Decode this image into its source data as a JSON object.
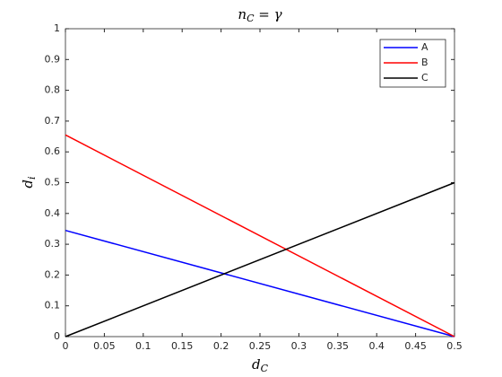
{
  "chart_data": {
    "type": "line",
    "title": {
      "base": "n",
      "sub": "C",
      "rest": " = γ"
    },
    "xlabel": {
      "base": "d",
      "sub": "C"
    },
    "ylabel": {
      "base": "d",
      "sub": "i"
    },
    "x": [
      0,
      0.5
    ],
    "series": [
      {
        "name": "A",
        "color": "#0000ff",
        "values": [
          0.345,
          0
        ]
      },
      {
        "name": "B",
        "color": "#ff0000",
        "values": [
          0.655,
          0
        ]
      },
      {
        "name": "C",
        "color": "#000000",
        "values": [
          0,
          0.5
        ]
      }
    ],
    "xlim": [
      0,
      0.5
    ],
    "xticks": [
      0,
      0.05,
      0.1,
      0.15,
      0.2,
      0.25,
      0.3,
      0.35,
      0.4,
      0.45,
      0.5
    ],
    "ylim": [
      0,
      1
    ],
    "yticks": [
      0,
      0.1,
      0.2,
      0.3,
      0.4,
      0.5,
      0.6,
      0.7,
      0.8,
      0.9,
      1
    ],
    "grid": false,
    "legend": "northeast"
  }
}
